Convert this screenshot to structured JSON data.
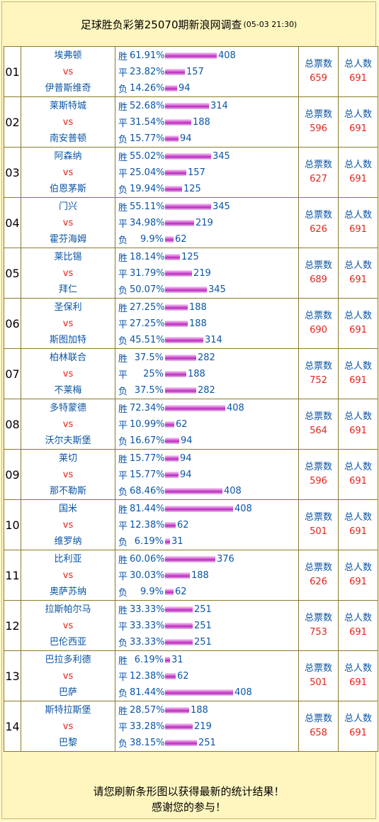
{
  "header": {
    "title": "足球胜负彩第25070期新浪网调查",
    "timestamp": "(05-03 21:30)"
  },
  "labels": {
    "win": "胜",
    "draw": "平",
    "lose": "负",
    "vs": "vs",
    "total_votes": "总票数",
    "total_people": "总人数"
  },
  "matches": [
    {
      "no": "01",
      "home": "埃弗顿",
      "away": "伊普斯维奇",
      "rows": [
        {
          "pct": "61.91%",
          "count": "408",
          "frac": 0.6191
        },
        {
          "pct": "23.82%",
          "count": "157",
          "frac": 0.2382
        },
        {
          "pct": "14.26%",
          "count": "94",
          "frac": 0.1426
        }
      ],
      "votes": "659",
      "people": "691"
    },
    {
      "no": "02",
      "home": "莱斯特城",
      "away": "南安普顿",
      "rows": [
        {
          "pct": "52.68%",
          "count": "314",
          "frac": 0.5268
        },
        {
          "pct": "31.54%",
          "count": "188",
          "frac": 0.3154
        },
        {
          "pct": "15.77%",
          "count": "94",
          "frac": 0.1577
        }
      ],
      "votes": "596",
      "people": "691"
    },
    {
      "no": "03",
      "home": "阿森纳",
      "away": "伯恩茅斯",
      "rows": [
        {
          "pct": "55.02%",
          "count": "345",
          "frac": 0.5502
        },
        {
          "pct": "25.04%",
          "count": "157",
          "frac": 0.2504
        },
        {
          "pct": "19.94%",
          "count": "125",
          "frac": 0.1994
        }
      ],
      "votes": "627",
      "people": "691"
    },
    {
      "no": "04",
      "home": "门兴",
      "away": "霍芬海姆",
      "rows": [
        {
          "pct": "55.11%",
          "count": "345",
          "frac": 0.5511
        },
        {
          "pct": "34.98%",
          "count": "219",
          "frac": 0.3498
        },
        {
          "pct": "9.9%",
          "count": "62",
          "frac": 0.099
        }
      ],
      "votes": "626",
      "people": "691"
    },
    {
      "no": "05",
      "home": "莱比锡",
      "away": "拜仁",
      "rows": [
        {
          "pct": "18.14%",
          "count": "125",
          "frac": 0.1814
        },
        {
          "pct": "31.79%",
          "count": "219",
          "frac": 0.3179
        },
        {
          "pct": "50.07%",
          "count": "345",
          "frac": 0.5007
        }
      ],
      "votes": "689",
      "people": "691"
    },
    {
      "no": "06",
      "home": "圣保利",
      "away": "斯图加特",
      "rows": [
        {
          "pct": "27.25%",
          "count": "188",
          "frac": 0.2725
        },
        {
          "pct": "27.25%",
          "count": "188",
          "frac": 0.2725
        },
        {
          "pct": "45.51%",
          "count": "314",
          "frac": 0.4551
        }
      ],
      "votes": "690",
      "people": "691"
    },
    {
      "no": "07",
      "home": "柏林联合",
      "away": "不莱梅",
      "rows": [
        {
          "pct": "37.5%",
          "count": "282",
          "frac": 0.375
        },
        {
          "pct": "25%",
          "count": "188",
          "frac": 0.25
        },
        {
          "pct": "37.5%",
          "count": "282",
          "frac": 0.375
        }
      ],
      "votes": "752",
      "people": "691"
    },
    {
      "no": "08",
      "home": "多特蒙德",
      "away": "沃尔夫斯堡",
      "rows": [
        {
          "pct": "72.34%",
          "count": "408",
          "frac": 0.7234
        },
        {
          "pct": "10.99%",
          "count": "62",
          "frac": 0.1099
        },
        {
          "pct": "16.67%",
          "count": "94",
          "frac": 0.1667
        }
      ],
      "votes": "564",
      "people": "691"
    },
    {
      "no": "09",
      "home": "莱切",
      "away": "那不勒斯",
      "rows": [
        {
          "pct": "15.77%",
          "count": "94",
          "frac": 0.1577
        },
        {
          "pct": "15.77%",
          "count": "94",
          "frac": 0.1577
        },
        {
          "pct": "68.46%",
          "count": "408",
          "frac": 0.6846
        }
      ],
      "votes": "596",
      "people": "691"
    },
    {
      "no": "10",
      "home": "国米",
      "away": "维罗纳",
      "rows": [
        {
          "pct": "81.44%",
          "count": "408",
          "frac": 0.8144
        },
        {
          "pct": "12.38%",
          "count": "62",
          "frac": 0.1238
        },
        {
          "pct": "6.19%",
          "count": "31",
          "frac": 0.0619
        }
      ],
      "votes": "501",
      "people": "691"
    },
    {
      "no": "11",
      "home": "比利亚",
      "away": "奥萨苏纳",
      "rows": [
        {
          "pct": "60.06%",
          "count": "376",
          "frac": 0.6006
        },
        {
          "pct": "30.03%",
          "count": "188",
          "frac": 0.3003
        },
        {
          "pct": "9.9%",
          "count": "62",
          "frac": 0.099
        }
      ],
      "votes": "626",
      "people": "691"
    },
    {
      "no": "12",
      "home": "拉斯帕尔马",
      "away": "巴伦西亚",
      "rows": [
        {
          "pct": "33.33%",
          "count": "251",
          "frac": 0.3333
        },
        {
          "pct": "33.33%",
          "count": "251",
          "frac": 0.3333
        },
        {
          "pct": "33.33%",
          "count": "251",
          "frac": 0.3333
        }
      ],
      "votes": "753",
      "people": "691"
    },
    {
      "no": "13",
      "home": "巴拉多利德",
      "away": "巴萨",
      "rows": [
        {
          "pct": "6.19%",
          "count": "31",
          "frac": 0.0619
        },
        {
          "pct": "12.38%",
          "count": "62",
          "frac": 0.1238
        },
        {
          "pct": "81.44%",
          "count": "408",
          "frac": 0.8144
        }
      ],
      "votes": "501",
      "people": "691"
    },
    {
      "no": "14",
      "home": "斯特拉斯堡",
      "away": "巴黎",
      "rows": [
        {
          "pct": "28.57%",
          "count": "188",
          "frac": 0.2857
        },
        {
          "pct": "33.28%",
          "count": "219",
          "frac": 0.3328
        },
        {
          "pct": "38.15%",
          "count": "251",
          "frac": 0.3815
        }
      ],
      "votes": "658",
      "people": "691"
    }
  ],
  "footer": {
    "line1": "请您刷新条形图以获得最新的统计结果！",
    "line2": "感谢您的参与！"
  },
  "colors": {
    "background": "#fff6bf",
    "team": "#0b55a6",
    "accent": "#e4241b",
    "bar": "#c94fcf"
  }
}
